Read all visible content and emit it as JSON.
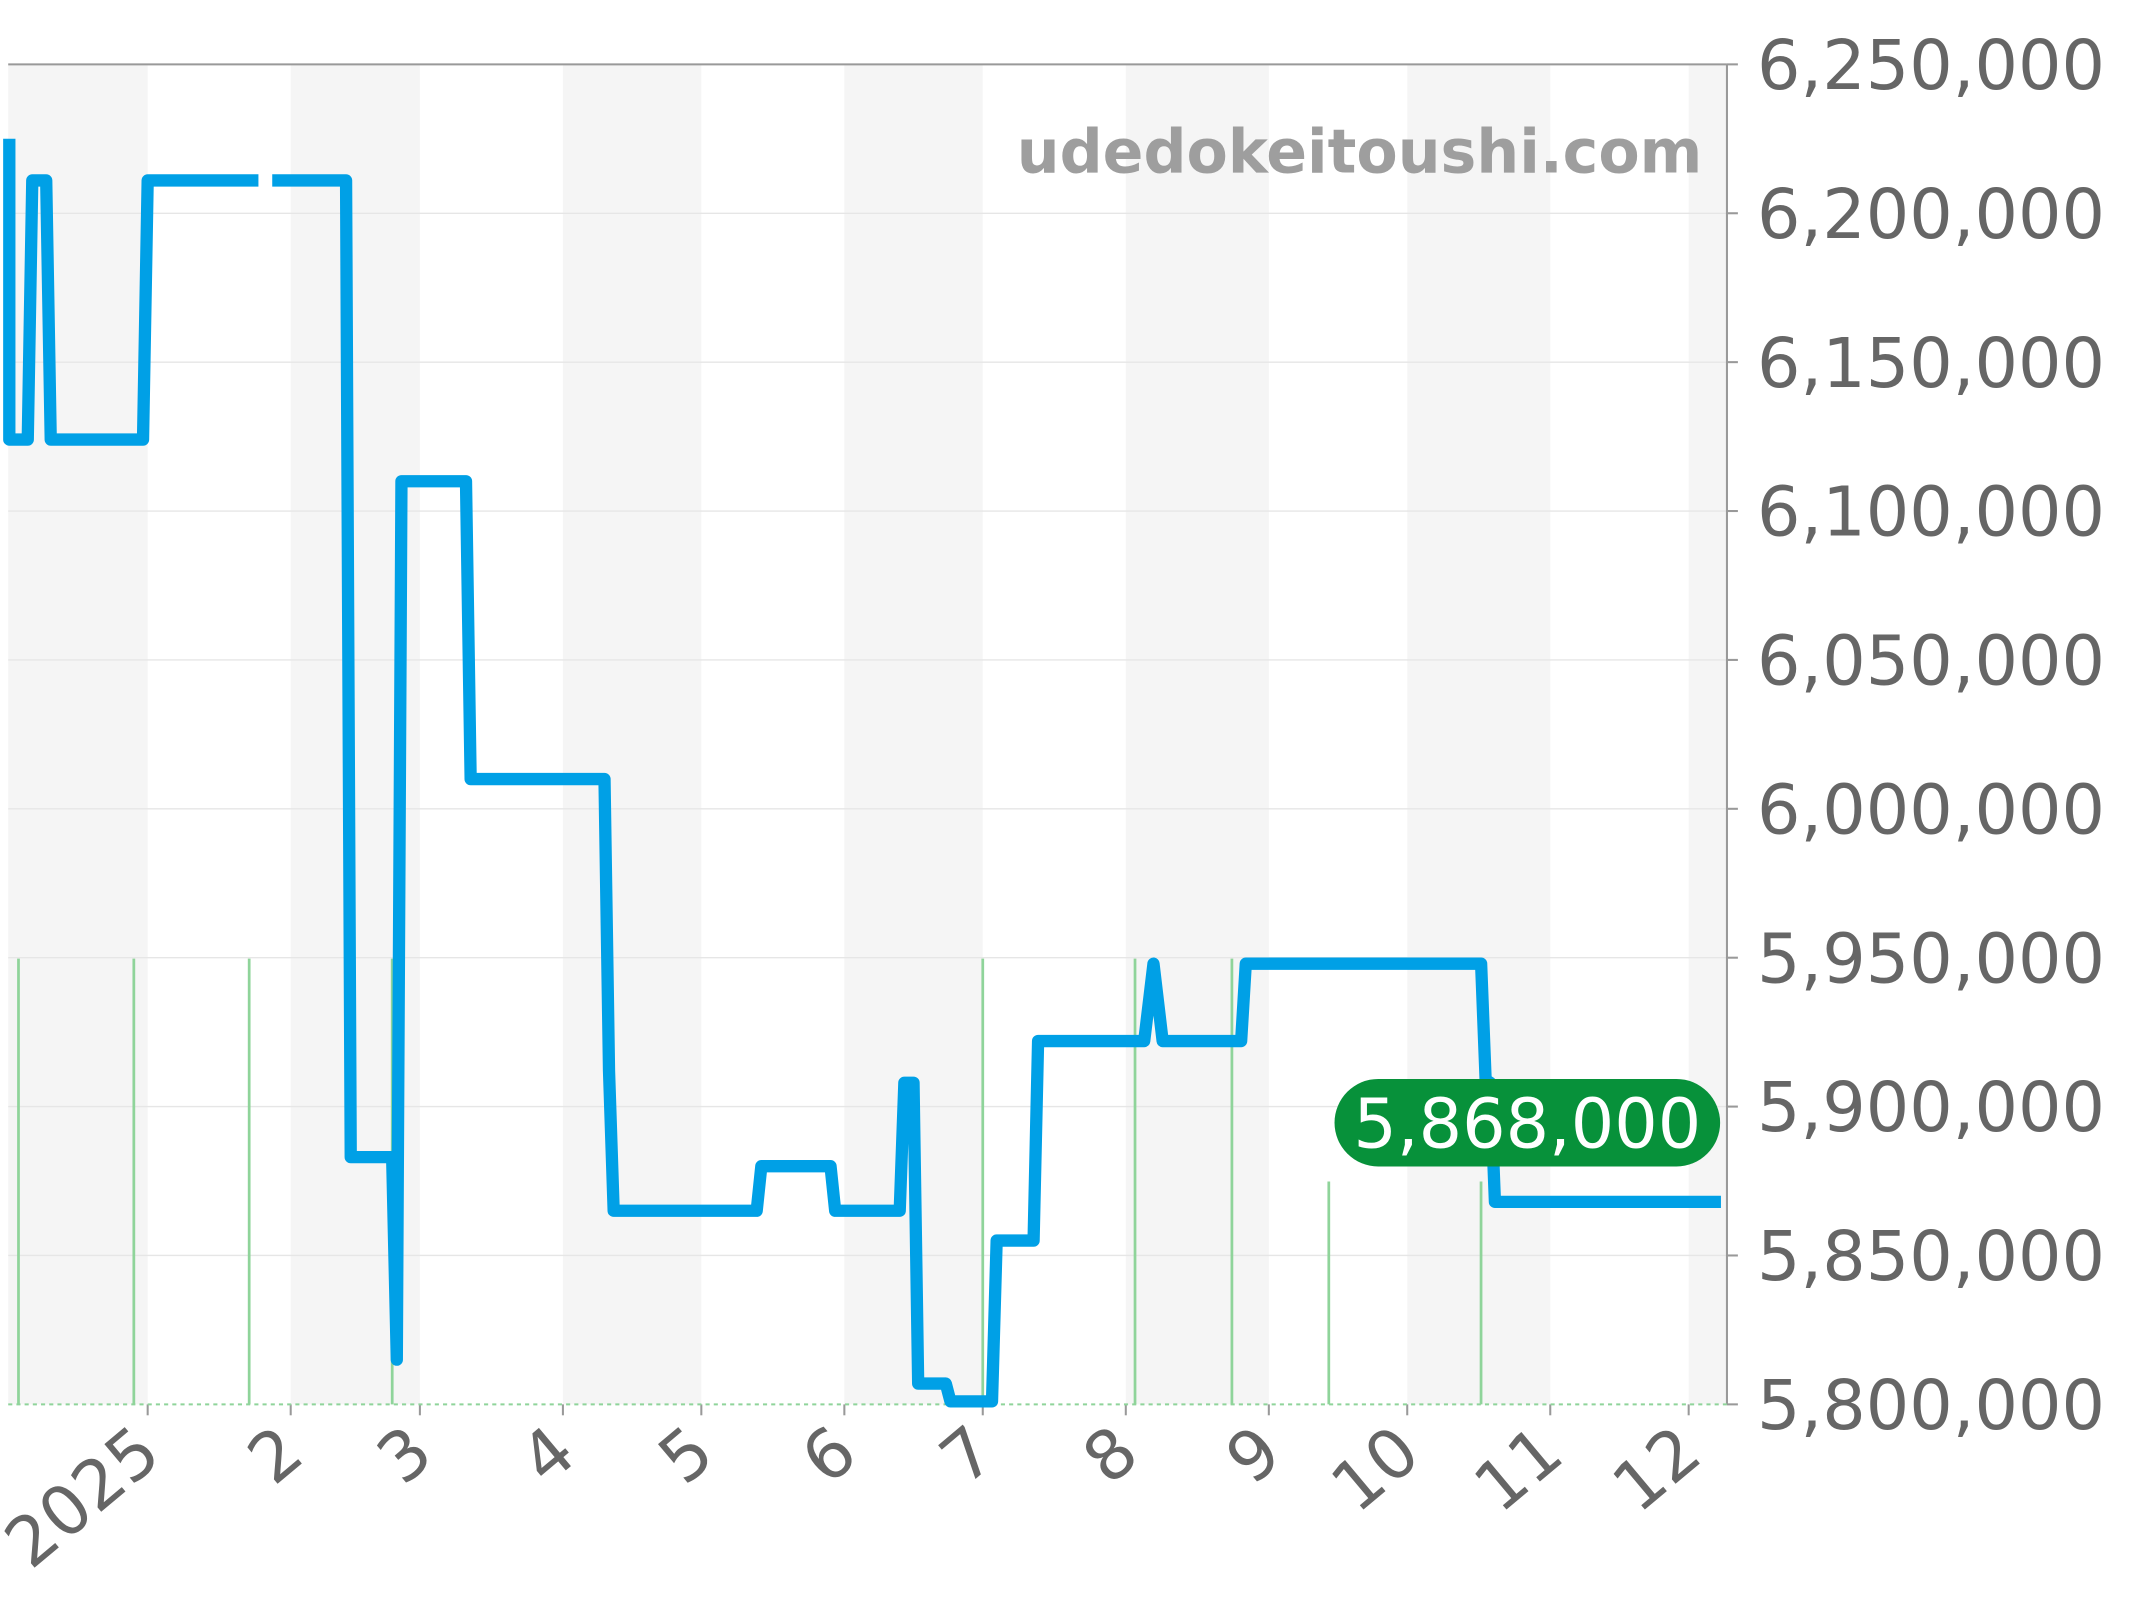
{
  "chart_data": {
    "type": "line",
    "title": "",
    "xlabel": "",
    "ylabel": "",
    "watermark": "udedokeitoushi.com",
    "xlim": [
      "2024-12-02",
      "2025-12-09"
    ],
    "ylim": [
      5800000,
      6250000
    ],
    "grid": true,
    "y_ticks": [
      "6,250,000",
      "6,200,000",
      "6,150,000",
      "6,100,000",
      "6,050,000",
      "6,000,000",
      "5,950,000",
      "5,900,000",
      "5,850,000",
      "5,800,000"
    ],
    "y_tick_values": [
      6250000,
      6200000,
      6150000,
      6100000,
      6050000,
      6000000,
      5950000,
      5900000,
      5850000,
      5800000
    ],
    "x_ticks": [
      {
        "label": "2025",
        "date": "2025-01-01"
      },
      {
        "label": "2",
        "date": "2025-02-01"
      },
      {
        "label": "3",
        "date": "2025-03-01"
      },
      {
        "label": "4",
        "date": "2025-04-01"
      },
      {
        "label": "5",
        "date": "2025-05-01"
      },
      {
        "label": "6",
        "date": "2025-06-01"
      },
      {
        "label": "7",
        "date": "2025-07-01"
      },
      {
        "label": "8",
        "date": "2025-08-01"
      },
      {
        "label": "9",
        "date": "2025-09-01"
      },
      {
        "label": "10",
        "date": "2025-10-01"
      },
      {
        "label": "11",
        "date": "2025-11-01"
      },
      {
        "label": "12",
        "date": "2025-12-01"
      }
    ],
    "month_bands_shaded": [
      "2024-12",
      "2025-02",
      "2025-04",
      "2025-06",
      "2025-08",
      "2025-10",
      "2025-12"
    ],
    "series": [
      {
        "color": "#00a0e6",
        "points": [
          [
            "2024-12-02",
            6225000
          ],
          [
            "2024-12-02",
            6124000
          ],
          [
            "2024-12-06",
            6124000
          ],
          [
            "2024-12-07",
            6211000
          ],
          [
            "2024-12-10",
            6211000
          ],
          [
            "2024-12-11",
            6124000
          ],
          [
            "2024-12-31",
            6124000
          ],
          [
            "2025-01-01",
            6211000
          ],
          [
            "2025-01-25",
            6211000
          ],
          [
            null,
            null
          ],
          [
            "2025-01-28",
            6211000
          ],
          [
            "2025-02-13",
            6211000
          ],
          [
            "2025-02-14",
            5883000
          ],
          [
            "2025-02-23",
            5883000
          ],
          [
            "2025-02-24",
            5815000
          ],
          [
            "2025-02-25",
            6110000
          ],
          [
            "2025-03-11",
            6110000
          ],
          [
            "2025-03-12",
            6010000
          ],
          [
            "2025-04-10",
            6010000
          ],
          [
            "2025-04-11",
            5912000
          ],
          [
            "2025-04-12",
            5865000
          ],
          [
            "2025-05-13",
            5865000
          ],
          [
            "2025-05-14",
            5880000
          ],
          [
            "2025-05-29",
            5880000
          ],
          [
            "2025-05-30",
            5865000
          ],
          [
            "2025-06-13",
            5865000
          ],
          [
            "2025-06-14",
            5908000
          ],
          [
            "2025-06-16",
            5908000
          ],
          [
            "2025-06-17",
            5807000
          ],
          [
            "2025-06-23",
            5807000
          ],
          [
            "2025-06-24",
            5801000
          ],
          [
            "2025-07-03",
            5801000
          ],
          [
            "2025-07-04",
            5855000
          ],
          [
            "2025-07-12",
            5855000
          ],
          [
            "2025-07-13",
            5922000
          ],
          [
            "2025-08-05",
            5922000
          ],
          [
            "2025-08-07",
            5948000
          ],
          [
            "2025-08-09",
            5922000
          ],
          [
            "2025-08-26",
            5922000
          ],
          [
            "2025-08-27",
            5948000
          ],
          [
            "2025-10-17",
            5948000
          ],
          [
            "2025-10-18",
            5909000
          ],
          [
            "2025-10-19",
            5908000
          ],
          [
            "2025-10-20",
            5868000
          ],
          [
            "2025-12-08",
            5868000
          ]
        ]
      }
    ],
    "volume_bars": {
      "color": "#8fd49a",
      "points": [
        [
          "2024-12-04",
          2
        ],
        [
          "2024-12-29",
          2
        ],
        [
          "2025-01-23",
          2
        ],
        [
          "2025-02-23",
          2
        ],
        [
          "2025-07-01",
          2
        ],
        [
          "2025-08-03",
          2
        ],
        [
          "2025-08-24",
          2
        ],
        [
          "2025-09-14",
          1
        ],
        [
          "2025-10-17",
          1
        ]
      ]
    },
    "last_value": {
      "label": "5,868,000",
      "value": 5868000,
      "color": "#07913a"
    }
  }
}
